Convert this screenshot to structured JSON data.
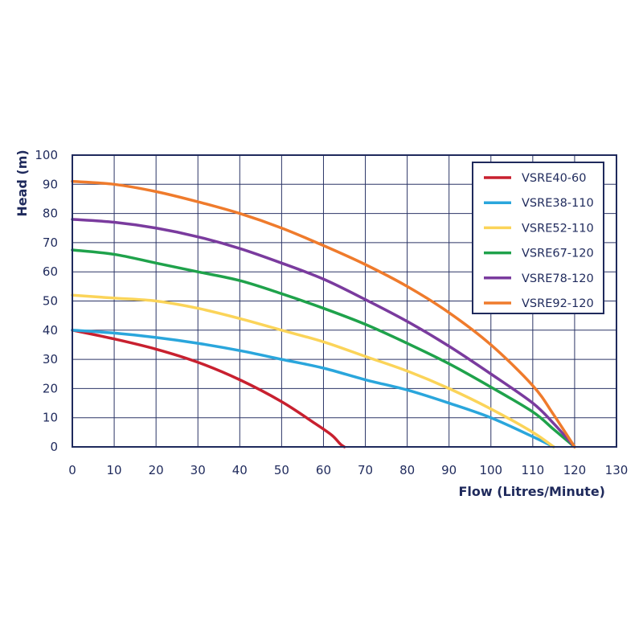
{
  "chart_data": {
    "type": "line",
    "xlabel": "Flow (Litres/Minute)",
    "ylabel": "Head (m)",
    "xlim": [
      0,
      130
    ],
    "ylim": [
      0,
      100
    ],
    "xticks": [
      0,
      10,
      20,
      30,
      40,
      50,
      60,
      70,
      80,
      90,
      100,
      110,
      120,
      130
    ],
    "yticks": [
      0,
      10,
      20,
      30,
      40,
      50,
      60,
      70,
      80,
      90,
      100
    ],
    "grid": true,
    "legend_position": "top-right",
    "series": [
      {
        "name": "VSRE40-60",
        "color": "#c8202f",
        "x": [
          0,
          10,
          20,
          30,
          40,
          50,
          58,
          62,
          64,
          65
        ],
        "y": [
          40,
          37,
          33.5,
          29,
          23,
          15.5,
          8,
          4,
          1,
          0
        ]
      },
      {
        "name": "VSRE38-110",
        "color": "#2aa6dc",
        "x": [
          0,
          10,
          20,
          30,
          40,
          50,
          60,
          70,
          80,
          90,
          100,
          110,
          115
        ],
        "y": [
          40,
          39,
          37.5,
          35.5,
          33,
          30,
          27,
          23,
          19.5,
          15,
          10,
          3.5,
          0
        ]
      },
      {
        "name": "VSRE52-110",
        "color": "#fbd459",
        "x": [
          0,
          10,
          20,
          30,
          40,
          50,
          60,
          70,
          80,
          90,
          100,
          110,
          115
        ],
        "y": [
          52,
          51,
          50,
          47.5,
          44,
          40,
          36,
          31,
          26,
          20,
          13,
          5,
          0
        ]
      },
      {
        "name": "VSRE67-120",
        "color": "#1fa24b",
        "x": [
          0,
          10,
          20,
          30,
          40,
          50,
          60,
          70,
          80,
          90,
          100,
          110,
          115,
          120
        ],
        "y": [
          67.5,
          66,
          63,
          60,
          57,
          52.5,
          47.5,
          42,
          35.5,
          28.5,
          20.5,
          12,
          6,
          0
        ]
      },
      {
        "name": "VSRE78-120",
        "color": "#7a3b9e",
        "x": [
          0,
          10,
          20,
          30,
          40,
          50,
          60,
          70,
          80,
          90,
          100,
          110,
          115,
          120
        ],
        "y": [
          78,
          77,
          75,
          72,
          68,
          63,
          57.5,
          50.5,
          43,
          34.5,
          25,
          15,
          8,
          0
        ]
      },
      {
        "name": "VSRE92-120",
        "color": "#ef7b2c",
        "x": [
          0,
          10,
          20,
          30,
          40,
          50,
          60,
          70,
          80,
          90,
          100,
          110,
          115,
          120
        ],
        "y": [
          91,
          90,
          87.5,
          84,
          80,
          75,
          69,
          62.5,
          55,
          46,
          35,
          21,
          11,
          0
        ]
      }
    ]
  }
}
